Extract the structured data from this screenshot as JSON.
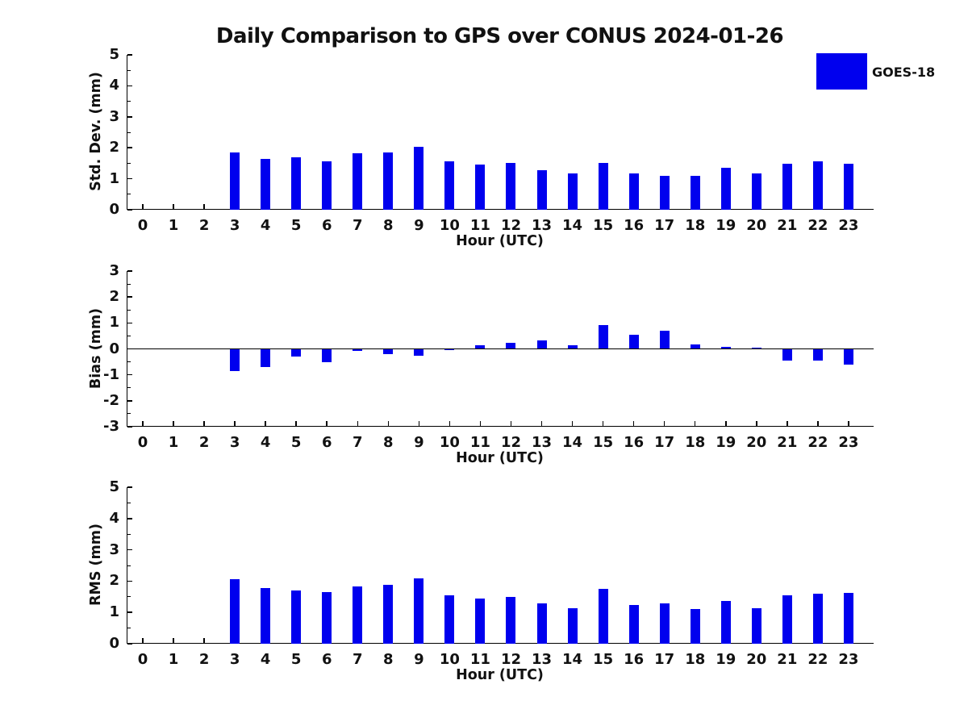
{
  "title": "Daily Comparison to GPS over CONUS 2024-01-26",
  "legend": {
    "label": "GOES-18",
    "color": "#0000EE"
  },
  "xlabel": "Hour (UTC)",
  "chart_data": [
    {
      "type": "bar",
      "id": "std-dev",
      "series_name": "GOES-18",
      "bar_color": "#0000EE",
      "ylabel": "Std. Dev. (mm)",
      "ylim": [
        0,
        5
      ],
      "yticks": [
        0,
        1,
        2,
        3,
        4,
        5
      ],
      "categories": [
        0,
        1,
        2,
        3,
        4,
        5,
        6,
        7,
        8,
        9,
        10,
        11,
        12,
        13,
        14,
        15,
        16,
        17,
        18,
        19,
        20,
        21,
        22,
        23
      ],
      "values": [
        0,
        0,
        0,
        1.85,
        1.65,
        1.7,
        1.57,
        1.82,
        1.85,
        2.04,
        1.55,
        1.46,
        1.5,
        1.28,
        1.16,
        1.52,
        1.16,
        1.1,
        1.1,
        1.36,
        1.16,
        1.48,
        1.55,
        1.48
      ]
    },
    {
      "type": "bar",
      "id": "bias",
      "series_name": "GOES-18",
      "bar_color": "#0000EE",
      "ylabel": "Bias (mm)",
      "ylim": [
        -3,
        3
      ],
      "yticks": [
        -3,
        -2,
        -1,
        0,
        1,
        2,
        3
      ],
      "categories": [
        0,
        1,
        2,
        3,
        4,
        5,
        6,
        7,
        8,
        9,
        10,
        11,
        12,
        13,
        14,
        15,
        16,
        17,
        18,
        19,
        20,
        21,
        22,
        23
      ],
      "values": [
        0,
        0,
        0,
        -0.85,
        -0.7,
        -0.3,
        -0.5,
        -0.08,
        -0.2,
        -0.25,
        -0.05,
        0.13,
        0.22,
        0.34,
        0.13,
        0.92,
        0.55,
        0.7,
        0.18,
        0.08,
        0.04,
        -0.45,
        -0.45,
        -0.62
      ]
    },
    {
      "type": "bar",
      "id": "rms",
      "series_name": "GOES-18",
      "bar_color": "#0000EE",
      "ylabel": "RMS (mm)",
      "ylim": [
        0,
        5
      ],
      "yticks": [
        0,
        1,
        2,
        3,
        4,
        5
      ],
      "categories": [
        0,
        1,
        2,
        3,
        4,
        5,
        6,
        7,
        8,
        9,
        10,
        11,
        12,
        13,
        14,
        15,
        16,
        17,
        18,
        19,
        20,
        21,
        22,
        23
      ],
      "values": [
        0,
        0,
        0,
        2.05,
        1.77,
        1.71,
        1.66,
        1.84,
        1.87,
        2.08,
        1.54,
        1.45,
        1.5,
        1.29,
        1.13,
        1.75,
        1.23,
        1.28,
        1.11,
        1.36,
        1.14,
        1.54,
        1.6,
        1.62
      ]
    }
  ]
}
